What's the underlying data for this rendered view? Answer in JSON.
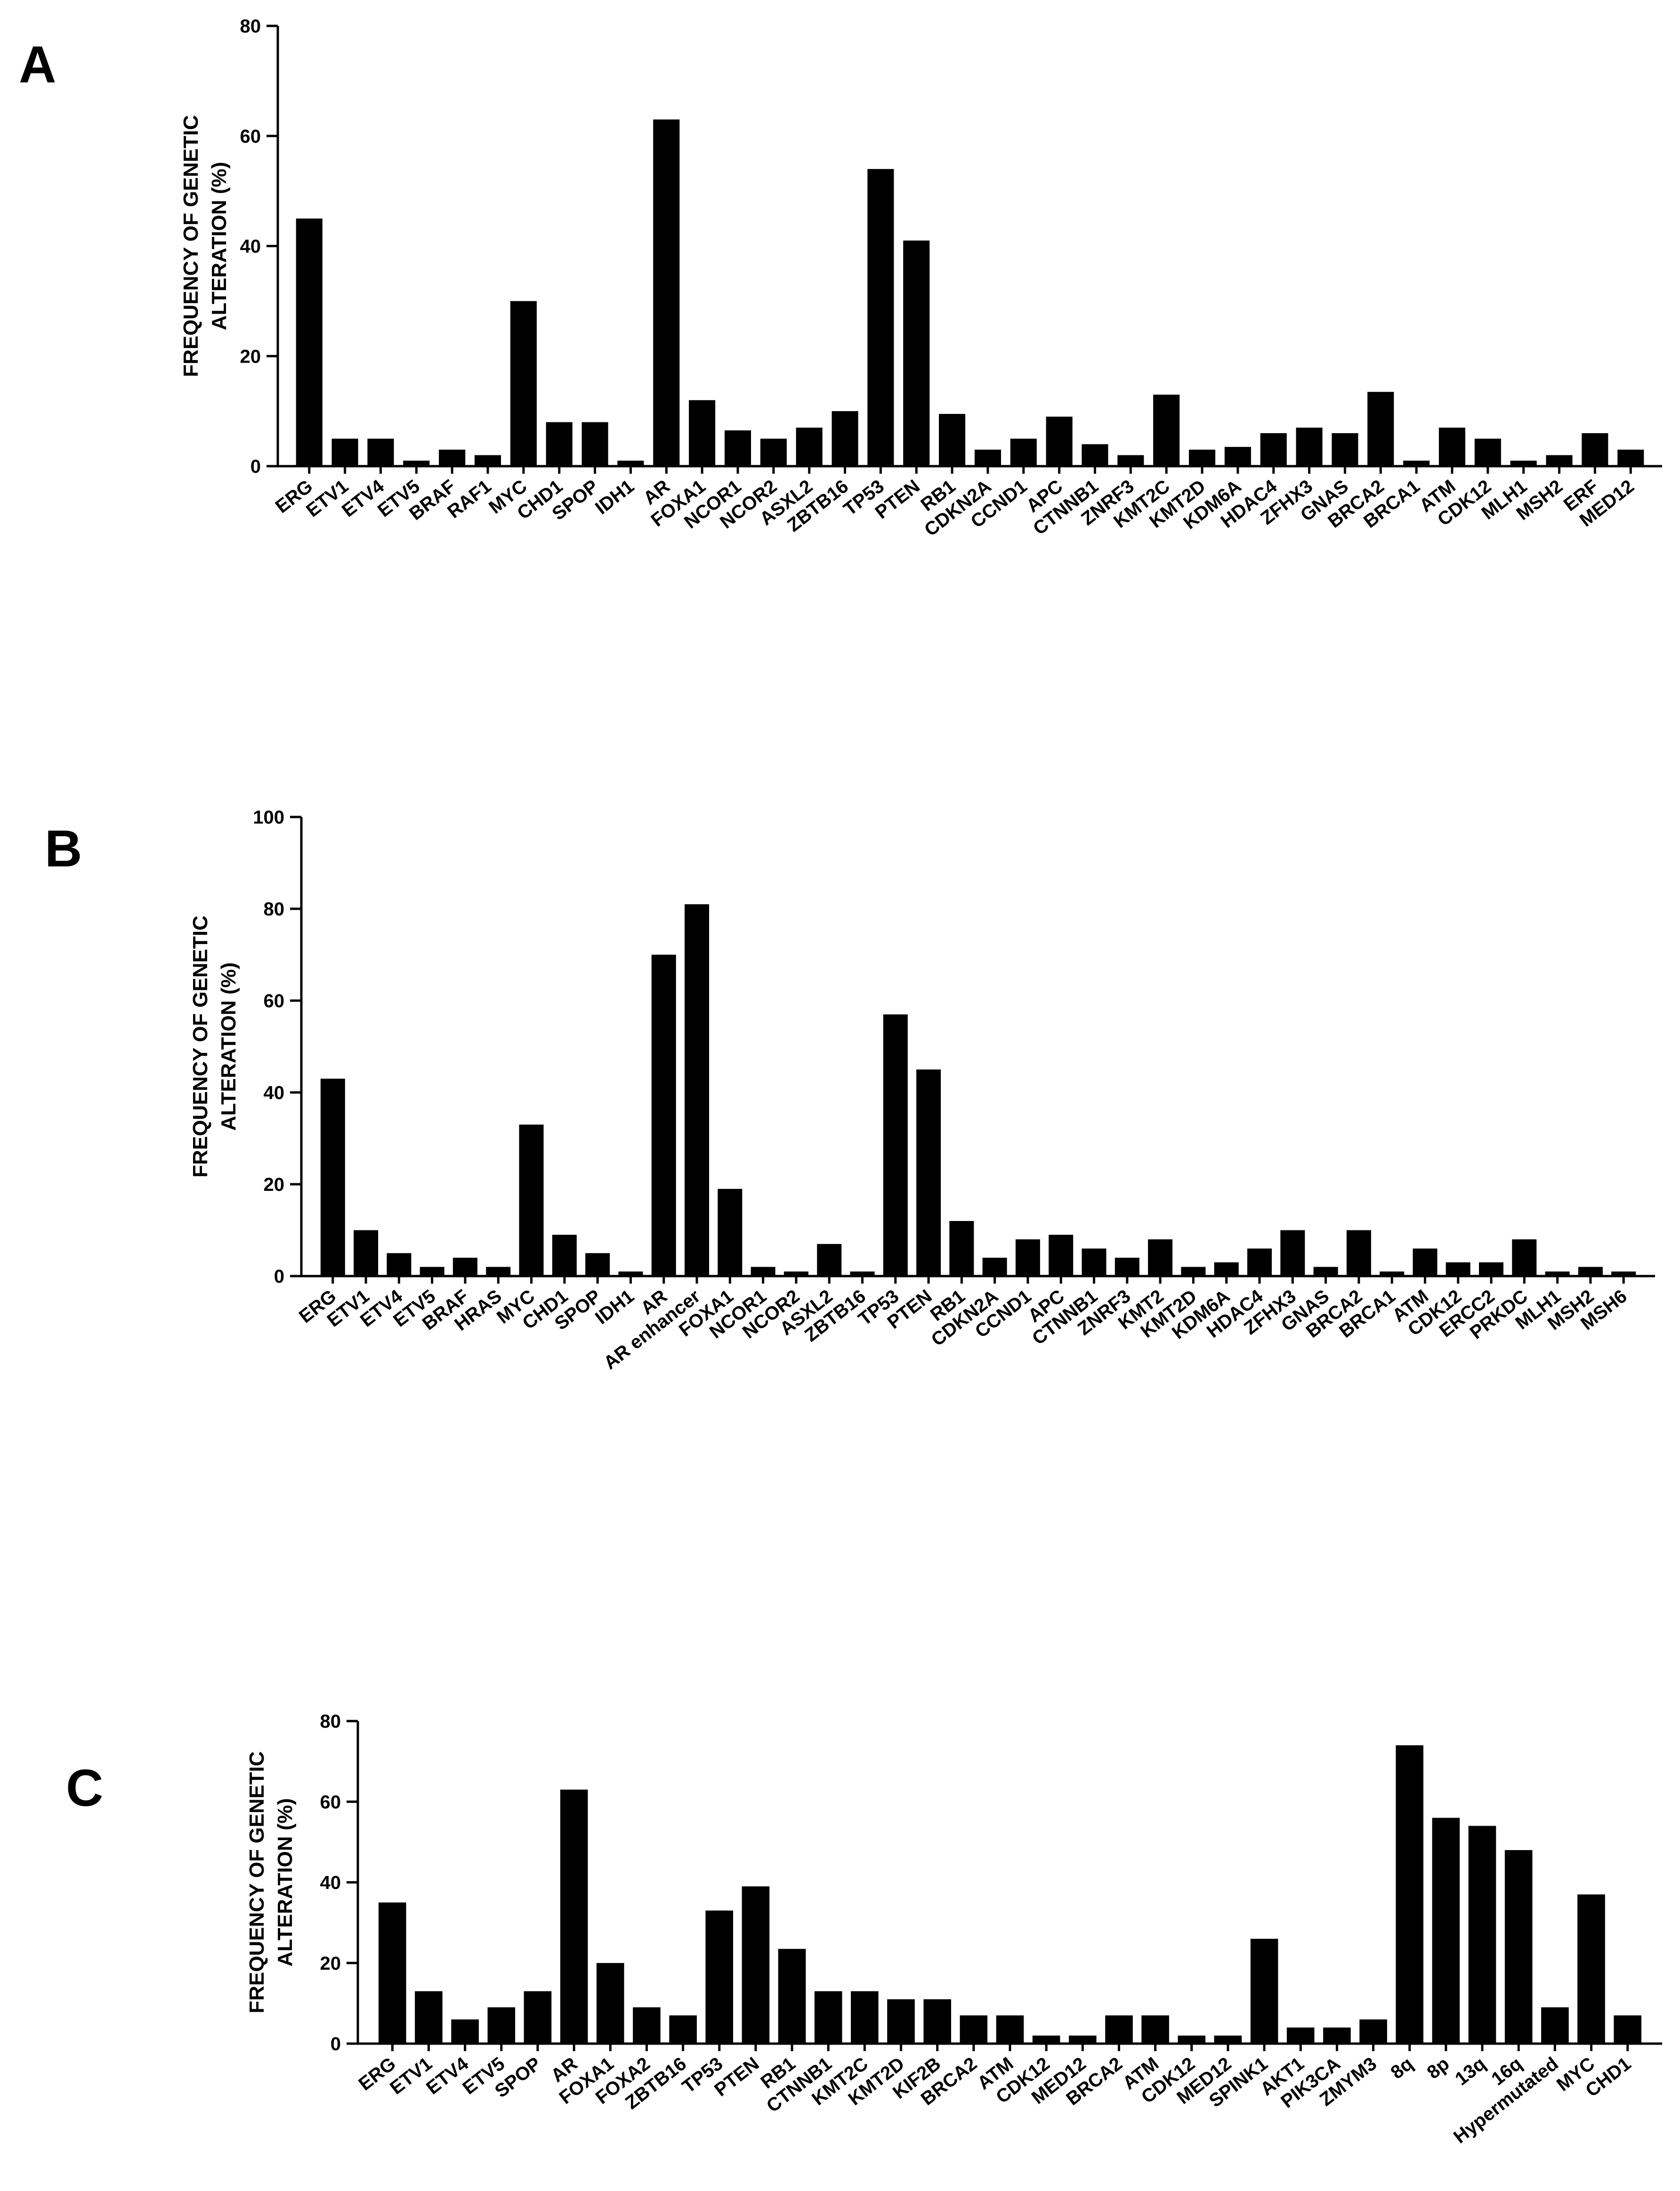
{
  "chart_data": [
    {
      "panel": "A",
      "type": "bar",
      "ylabel_lines": [
        "FREQUENCY OF GENETIC",
        "ALTERATION (%)"
      ],
      "ylim": [
        0,
        80
      ],
      "yticks": [
        0,
        20,
        40,
        60,
        80
      ],
      "categories": [
        "ERG",
        "ETV1",
        "ETV4",
        "ETV5",
        "BRAF",
        "RAF1",
        "MYC",
        "CHD1",
        "SPOP",
        "IDH1",
        "AR",
        "FOXA1",
        "NCOR1",
        "NCOR2",
        "ASXL2",
        "ZBTB16",
        "TP53",
        "PTEN",
        "RB1",
        "CDKN2A",
        "CCND1",
        "APC",
        "CTNNB1",
        "ZNRF3",
        "KMT2C",
        "KMT2D",
        "KDM6A",
        "HDAC4",
        "ZFHX3",
        "GNAS",
        "BRCA2",
        "BRCA1",
        "ATM",
        "CDK12",
        "MLH1",
        "MSH2",
        "ERF",
        "MED12"
      ],
      "values": [
        45,
        5,
        5,
        1,
        3,
        2,
        30,
        8,
        8,
        1,
        63,
        12,
        6.5,
        5,
        7,
        10,
        54,
        41,
        9.5,
        3,
        5,
        9,
        4,
        2,
        13,
        3,
        3.5,
        6,
        7,
        6,
        13.5,
        1,
        7,
        5,
        1,
        2,
        6,
        3
      ]
    },
    {
      "panel": "B",
      "type": "bar",
      "ylabel_lines": [
        "FREQUENCY OF GENETIC",
        "ALTERATION (%)"
      ],
      "ylim": [
        0,
        100
      ],
      "yticks": [
        0,
        20,
        40,
        60,
        80,
        100
      ],
      "categories": [
        "ERG",
        "ETV1",
        "ETV4",
        "ETV5",
        "BRAF",
        "HRAS",
        "MYC",
        "CHD1",
        "SPOP",
        "IDH1",
        "AR",
        "AR enhancer",
        "FOXA1",
        "NCOR1",
        "NCOR2",
        "ASXL2",
        "ZBTB16",
        "TP53",
        "PTEN",
        "RB1",
        "CDKN2A",
        "CCND1",
        "APC",
        "CTNNB1",
        "ZNRF3",
        "KMT2",
        "KMT2D",
        "KDM6A",
        "HDAC4",
        "ZFHX3",
        "GNAS",
        "BRCA2",
        "BRCA1",
        "ATM",
        "CDK12",
        "ERCC2",
        "PRKDC",
        "MLH1",
        "MSH2",
        "MSH6"
      ],
      "values": [
        43,
        10,
        5,
        2,
        4,
        2,
        33,
        9,
        5,
        1,
        70,
        81,
        19,
        2,
        1,
        7,
        1,
        57,
        45,
        12,
        4,
        8,
        9,
        6,
        4,
        8,
        2,
        3,
        6,
        10,
        2,
        10,
        1,
        6,
        3,
        3,
        8,
        1,
        2,
        1
      ]
    },
    {
      "panel": "C",
      "type": "bar",
      "ylabel_lines": [
        "FREQUENCY OF GENETIC",
        "ALTERATION (%)"
      ],
      "ylim": [
        0,
        80
      ],
      "yticks": [
        0,
        20,
        40,
        60,
        80
      ],
      "categories": [
        "ERG",
        "ETV1",
        "ETV4",
        "ETV5",
        "SPOP",
        "AR",
        "FOXA1",
        "FOXA2",
        "ZBTB16",
        "TP53",
        "PTEN",
        "RB1",
        "CTNNB1",
        "KMT2C",
        "KMT2D",
        "KIF2B",
        "BRCA2",
        "ATM",
        "CDK12",
        "MED12",
        "BRCA2",
        "ATM",
        "CDK12",
        "MED12",
        "SPINK1",
        "AKT1",
        "PIK3CA",
        "ZMYM3",
        "8q",
        "8p",
        "13q",
        "16q",
        "Hypermutated",
        "MYC",
        "CHD1"
      ],
      "values": [
        35,
        13,
        6,
        9,
        13,
        63,
        20,
        9,
        7,
        33,
        39,
        23.5,
        13,
        13,
        11,
        11,
        7,
        7,
        2,
        2,
        7,
        7,
        2,
        2,
        26,
        4,
        4,
        6,
        74,
        56,
        54,
        48,
        9,
        37,
        7
      ]
    }
  ]
}
